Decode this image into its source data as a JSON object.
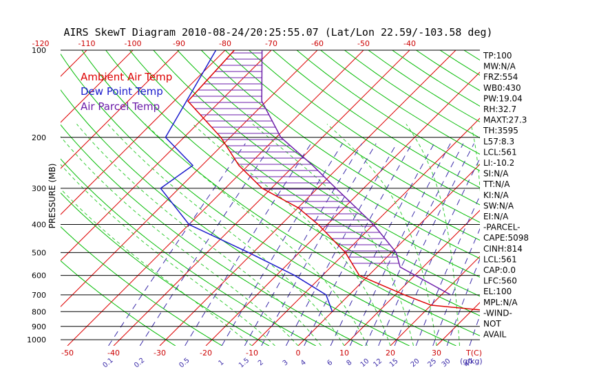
{
  "title": "AIRS SkewT Diagram 2010-08-24/20:25:55.07 (Lat/Lon 22.59/-103.58 deg)",
  "y_axis_label": "PRESSURE (MB)",
  "legend": [
    {
      "label": "Ambient Air Temp",
      "color": "#dd0000"
    },
    {
      "label": "Dew Point Temp",
      "color": "#1a1acc"
    },
    {
      "label": "Air Parcel Temp",
      "color": "#6a1aa8"
    }
  ],
  "bottom_unit_label": "T(C)",
  "mixing_ratio_unit_label": "(g/kg)",
  "colors": {
    "isotherm": "#dd0000",
    "dry_adiabat": "#00bb00",
    "moist_adiabat": "#33cc33",
    "mixing_ratio": "#3a2aa8",
    "isobar": "#000000",
    "cape_hatch": "#6a1aa8"
  },
  "chart_data": {
    "type": "line",
    "pressure_ticks": [
      "100",
      "200",
      "300",
      "400",
      "500",
      "600",
      "700",
      "800",
      "900",
      "1000"
    ],
    "top_temp_ticks": [
      "-120",
      "-110",
      "-100",
      "-90",
      "-80",
      "-70",
      "-60",
      "-50",
      "-40"
    ],
    "bottom_temp_ticks": [
      "-50",
      "-40",
      "-30",
      "-20",
      "-10",
      "0",
      "10",
      "20",
      "30"
    ],
    "mixing_ratio_ticks": [
      "0.1",
      "0.2",
      "0.5",
      "1",
      "1.5",
      "2",
      "3",
      "4",
      "6",
      "8",
      "10",
      "12",
      "15",
      "20",
      "25",
      "30",
      "40"
    ],
    "pressure_range_mb": [
      1050,
      100
    ],
    "temperature_range_c": [
      -50,
      45
    ],
    "series": [
      {
        "name": "Ambient Air Temp",
        "points": [
          {
            "p": 100,
            "t": -78
          },
          {
            "p": 150,
            "t": -77
          },
          {
            "p": 200,
            "t": -62
          },
          {
            "p": 250,
            "t": -52
          },
          {
            "p": 300,
            "t": -42
          },
          {
            "p": 350,
            "t": -30
          },
          {
            "p": 400,
            "t": -22
          },
          {
            "p": 500,
            "t": -10
          },
          {
            "p": 600,
            "t": -2
          },
          {
            "p": 700,
            "t": 12
          },
          {
            "p": 760,
            "t": 20
          },
          {
            "p": 800,
            "t": 36
          }
        ]
      },
      {
        "name": "Dew Point Temp",
        "points": [
          {
            "p": 100,
            "t": -82
          },
          {
            "p": 200,
            "t": -74
          },
          {
            "p": 250,
            "t": -62
          },
          {
            "p": 300,
            "t": -64
          },
          {
            "p": 400,
            "t": -50
          },
          {
            "p": 500,
            "t": -31
          },
          {
            "p": 600,
            "t": -16
          },
          {
            "p": 700,
            "t": -5
          },
          {
            "p": 800,
            "t": 0
          }
        ]
      },
      {
        "name": "Air Parcel Temp",
        "points": [
          {
            "p": 100,
            "t": -72
          },
          {
            "p": 150,
            "t": -61
          },
          {
            "p": 200,
            "t": -49
          },
          {
            "p": 250,
            "t": -36
          },
          {
            "p": 300,
            "t": -26
          },
          {
            "p": 400,
            "t": -10
          },
          {
            "p": 500,
            "t": 1
          },
          {
            "p": 561,
            "t": 5
          },
          {
            "p": 700,
            "t": 22
          }
        ]
      }
    ],
    "cape_region": {
      "p_top": 100,
      "p_bottom": 561
    },
    "stats": [
      "TP:100",
      "MW:N/A",
      "FRZ:554",
      "WB0:430",
      "PW:19.04",
      "RH:32.7",
      "MAXT:27.3",
      "TH:3595",
      "L57:8.3",
      "LCL:561",
      "LI:-10.2",
      "SI:N/A",
      "TT:N/A",
      "KI:N/A",
      "SW:N/A",
      "EI:N/A",
      "-PARCEL-",
      "CAPE:5098",
      "CINH:814",
      "LCL:561",
      "CAP:0.0",
      "LFC:560",
      "EL:100",
      "MPL:N/A",
      "-WIND-",
      "NOT",
      "AVAIL"
    ]
  }
}
